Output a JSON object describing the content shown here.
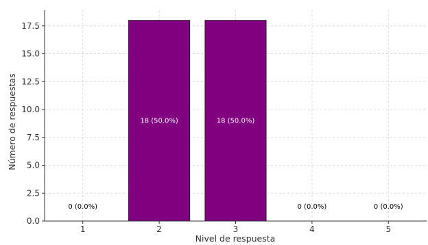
{
  "chart_data": {
    "type": "bar",
    "categories": [
      "1",
      "2",
      "3",
      "4",
      "5"
    ],
    "values": [
      0,
      18,
      18,
      0,
      0
    ],
    "data_labels": [
      "0 (0.0%)",
      "18 (50.0%)",
      "18 (50.0%)",
      "0 (0.0%)",
      "0 (0.0%)"
    ],
    "xlabel": "Nivel de respuesta",
    "ylabel": "Número de respuestas",
    "ylim": [
      0,
      18.9
    ],
    "yticks": [
      "0.0",
      "2.5",
      "5.0",
      "7.5",
      "10.0",
      "12.5",
      "15.0",
      "17.5"
    ],
    "grid": true,
    "bar_color": "#800080",
    "inside_label_color": "#ffffff",
    "outside_label_color": "#000000"
  }
}
